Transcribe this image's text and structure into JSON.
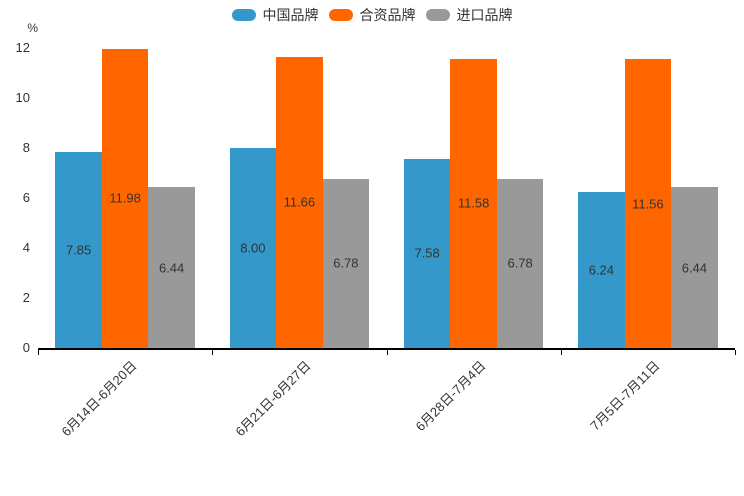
{
  "chart_data": {
    "type": "bar",
    "title": "",
    "categories": [
      "6月14日-6月20日",
      "6月21日-6月27日",
      "6月28日-7月4日",
      "7月5日-7月11日"
    ],
    "series": [
      {
        "name": "中国品牌",
        "color": "#3498CB",
        "values": [
          7.85,
          8.0,
          7.58,
          6.24
        ]
      },
      {
        "name": "合资品牌",
        "color": "#FF6600",
        "values": [
          11.98,
          11.66,
          11.58,
          11.56
        ]
      },
      {
        "name": "进口品牌",
        "color": "#999999",
        "values": [
          6.44,
          6.78,
          6.78,
          6.44
        ]
      }
    ],
    "y_axis": {
      "unit_label": "%",
      "ticks": [
        0,
        2,
        4,
        6,
        8,
        10,
        12
      ],
      "ylim": [
        0,
        12
      ]
    },
    "value_labels": "inside-center",
    "value_label_decimals": 2,
    "legend_position": "top",
    "grid": false,
    "axis_color": "#000000",
    "text_color": "#333333"
  }
}
